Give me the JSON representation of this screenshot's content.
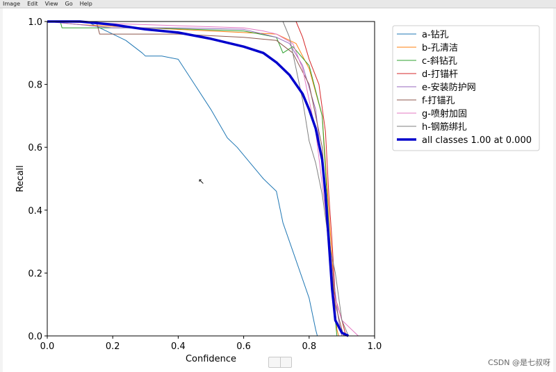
{
  "menu": {
    "items": [
      "Image",
      "Edit",
      "View",
      "Go",
      "Help"
    ]
  },
  "watermark": "CSDN @是七叔呀",
  "chart_data": {
    "type": "line",
    "xlabel": "Confidence",
    "ylabel": "Recall",
    "xlim": [
      0,
      1
    ],
    "ylim": [
      0,
      1
    ],
    "xticks": [
      "0.0",
      "0.2",
      "0.4",
      "0.6",
      "0.8",
      "1.0"
    ],
    "yticks": [
      "0.0",
      "0.2",
      "0.4",
      "0.6",
      "0.8",
      "1.0"
    ],
    "grid": false,
    "legend": "top-right",
    "series": [
      {
        "name": "a-钻孔",
        "color": "#1f77b4",
        "width": 1,
        "x": [
          0,
          0.12,
          0.2,
          0.24,
          0.29,
          0.3,
          0.35,
          0.4,
          0.45,
          0.5,
          0.55,
          0.58,
          0.62,
          0.66,
          0.7,
          0.72,
          0.76,
          0.8,
          0.82,
          0.825
        ],
        "y": [
          1,
          1,
          0.96,
          0.94,
          0.9,
          0.89,
          0.89,
          0.88,
          0.8,
          0.72,
          0.63,
          0.6,
          0.55,
          0.5,
          0.46,
          0.36,
          0.24,
          0.12,
          0.02,
          0
        ]
      },
      {
        "name": "b-孔清洁",
        "color": "#ff7f0e",
        "width": 1,
        "x": [
          0,
          0.1,
          0.3,
          0.5,
          0.7,
          0.76,
          0.8,
          0.84,
          0.87,
          0.88,
          0.885,
          0.89
        ],
        "y": [
          1,
          0.99,
          0.98,
          0.97,
          0.96,
          0.93,
          0.85,
          0.7,
          0.25,
          0.08,
          0.02,
          0
        ]
      },
      {
        "name": "c-斜钻孔",
        "color": "#2ca02c",
        "width": 1,
        "x": [
          0,
          0.04,
          0.045,
          0.3,
          0.6,
          0.7,
          0.72,
          0.75,
          0.8,
          0.84,
          0.86,
          0.88,
          0.885
        ],
        "y": [
          1,
          1,
          0.98,
          0.98,
          0.97,
          0.95,
          0.9,
          0.92,
          0.86,
          0.7,
          0.35,
          0.05,
          0
        ]
      },
      {
        "name": "d-打锚杆",
        "color": "#d62728",
        "width": 1,
        "x": [
          0.76,
          0.78,
          0.8,
          0.83,
          0.85,
          0.86,
          0.87,
          0.88,
          0.9,
          0.91,
          0.915
        ],
        "y": [
          1,
          0.95,
          0.88,
          0.8,
          0.65,
          0.45,
          0.3,
          0.12,
          0.05,
          0.01,
          0
        ]
      },
      {
        "name": "e-安装防护网",
        "color": "#9467bd",
        "width": 1,
        "x": [
          0,
          0.2,
          0.4,
          0.6,
          0.7,
          0.74,
          0.78,
          0.82,
          0.85,
          0.87,
          0.89,
          0.9
        ],
        "y": [
          1,
          0.98,
          0.98,
          0.975,
          0.95,
          0.93,
          0.86,
          0.72,
          0.45,
          0.22,
          0.05,
          0
        ]
      },
      {
        "name": "f-打锚孔",
        "color": "#8c564b",
        "width": 1,
        "x": [
          0,
          0.15,
          0.16,
          0.4,
          0.6,
          0.7,
          0.75,
          0.8,
          0.84,
          0.86,
          0.88,
          0.9,
          0.905
        ],
        "y": [
          1,
          1,
          0.96,
          0.96,
          0.95,
          0.94,
          0.9,
          0.8,
          0.6,
          0.3,
          0.1,
          0.02,
          0
        ]
      },
      {
        "name": "g-喷射加固",
        "color": "#e377c2",
        "width": 1,
        "x": [
          0,
          0.3,
          0.6,
          0.66,
          0.7,
          0.75,
          0.78,
          0.82,
          0.85,
          0.87,
          0.9,
          0.92,
          0.95
        ],
        "y": [
          1,
          0.99,
          0.98,
          0.97,
          0.96,
          0.93,
          0.85,
          0.65,
          0.4,
          0.15,
          0.05,
          0.03,
          0
        ]
      },
      {
        "name": "h-钢筋绑扎",
        "color": "#7f7f7f",
        "width": 1,
        "x": [
          0.72,
          0.74,
          0.76,
          0.78,
          0.8,
          0.82,
          0.84,
          0.86,
          0.88,
          0.9,
          0.92
        ],
        "y": [
          1,
          0.95,
          0.85,
          0.75,
          0.62,
          0.55,
          0.45,
          0.3,
          0.2,
          0.05,
          0
        ]
      },
      {
        "name": "all classes 1.00 at 0.000",
        "color": "#0000cc",
        "width": 3.5,
        "x": [
          0,
          0.1,
          0.2,
          0.3,
          0.4,
          0.5,
          0.6,
          0.66,
          0.7,
          0.74,
          0.78,
          0.8,
          0.82,
          0.84,
          0.85,
          0.86,
          0.87,
          0.88,
          0.9,
          0.92
        ],
        "y": [
          1,
          1,
          0.99,
          0.975,
          0.965,
          0.945,
          0.92,
          0.9,
          0.87,
          0.83,
          0.77,
          0.72,
          0.66,
          0.56,
          0.45,
          0.3,
          0.15,
          0.05,
          0.01,
          0
        ]
      }
    ]
  }
}
